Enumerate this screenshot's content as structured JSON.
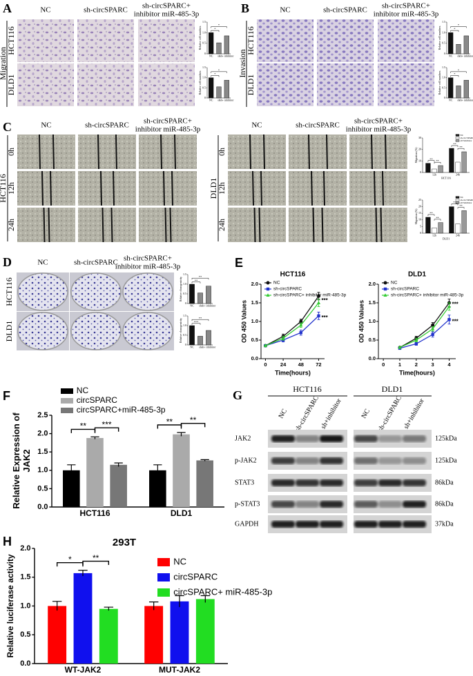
{
  "figure": {
    "panel_labels": [
      "A",
      "B",
      "C",
      "D",
      "E",
      "F",
      "G",
      "H"
    ],
    "A": {
      "columns": [
        [
          "NC"
        ],
        [
          "sh-circSPARC"
        ],
        [
          "sh-circSPARC+",
          "inhibitor miR-485-3p"
        ]
      ],
      "rows": [
        "HCT116",
        "DLD1"
      ],
      "side": "Migration"
    },
    "B": {
      "columns": [
        [
          "NC"
        ],
        [
          "sh-circSPARC"
        ],
        [
          "sh-circSPARC+",
          "inhibitor miR-485-3p"
        ]
      ],
      "rows": [
        "HCT116",
        "DLD1"
      ],
      "side": "Invasion"
    },
    "C": {
      "left": {
        "columns": [
          [
            "NC"
          ],
          [
            "sh-circSPARC"
          ],
          [
            "sh-circSPARC+",
            "inhibitor miR-485-3p"
          ]
        ],
        "rows": [
          "0h",
          "12h",
          "24h"
        ],
        "side": "HCT116"
      },
      "right": {
        "columns": [
          [
            "NC"
          ],
          [
            "sh-circSPARC"
          ],
          [
            "sh-circSPARC+",
            "inhibitor miR-485-3p"
          ]
        ],
        "rows": [
          "0h",
          "12h",
          "24h"
        ],
        "side": "DLD1"
      }
    },
    "D": {
      "columns": [
        [
          "NC"
        ],
        [
          "sh-circSPARC"
        ],
        [
          "sh-circSPARC+",
          "inhibitor miR-485-3p"
        ]
      ],
      "rows": [
        "HCT116",
        "DLD1"
      ]
    },
    "G": {
      "groups": [
        "HCT116",
        "DLD1"
      ],
      "lanes": [
        "NC",
        "sh-circSPARC",
        "sh+inhibitor"
      ],
      "rows": [
        "JAK2",
        "p-JAK2",
        "STAT3",
        "p-STAT3",
        "GAPDH"
      ],
      "sizes": [
        "125kDa",
        "125kDa",
        "86kDa",
        "86kDa",
        "37kDa"
      ]
    }
  },
  "chart_data": [
    {
      "type": "bar",
      "ylabel": "Relative cell numbers",
      "categories": [
        "NC",
        "sh",
        "sh+ inhibitor"
      ],
      "values": [
        1.0,
        0.52,
        0.85
      ],
      "colors": [
        "#111111",
        "#888888",
        "#888888"
      ],
      "ylim": [
        0,
        1.5
      ],
      "yticks": [
        0,
        0.5,
        {
          "value": 1,
          "label": "1.0"
        },
        1.5
      ],
      "annotations": [
        "*",
        "*"
      ]
    },
    {
      "type": "bar",
      "ylabel": "Relative cell numbers",
      "categories": [
        "NC",
        "sh",
        "sh+ inhibitor"
      ],
      "values": [
        1.0,
        0.55,
        0.88
      ],
      "colors": [
        "#111111",
        "#888888",
        "#888888"
      ],
      "ylim": [
        0,
        1.5
      ],
      "yticks": [
        0,
        0.5,
        {
          "value": 1,
          "label": "1.0"
        },
        1.5
      ],
      "annotations": [
        "*",
        "*"
      ]
    },
    {
      "type": "bar",
      "ylabel": "Relative cell numbers",
      "categories": [
        "NC",
        "sh",
        "sh+ inhibitor"
      ],
      "values": [
        1.0,
        0.45,
        0.85
      ],
      "colors": [
        "#111111",
        "#888888",
        "#888888"
      ],
      "ylim": [
        0,
        1.5
      ],
      "yticks": [
        0,
        0.5,
        {
          "value": 1,
          "label": "1.0"
        },
        1.5
      ],
      "annotations": [
        "*",
        "*"
      ]
    },
    {
      "type": "bar",
      "ylabel": "Relative cell numbers",
      "categories": [
        "NC",
        "sh",
        "sh+ inhibitor"
      ],
      "values": [
        1.0,
        0.6,
        0.88
      ],
      "colors": [
        "#111111",
        "#888888",
        "#888888"
      ],
      "ylim": [
        0,
        1.5
      ],
      "yticks": [
        0,
        0.5,
        {
          "value": 1,
          "label": "1.0"
        },
        1.5
      ],
      "annotations": [
        "*",
        "*"
      ]
    },
    {
      "type": "bar",
      "ylabel": "Migration (%)",
      "xlabel": "HCT116",
      "categories": [
        "12h",
        "24h"
      ],
      "series": [
        {
          "name": "NC",
          "color": "#111111",
          "values": [
            8,
            21
          ]
        },
        {
          "name": "sh-circSPARC",
          "color": "#ffffff",
          "values": [
            3,
            9
          ]
        },
        {
          "name": "sh+inhibitor",
          "color": "#999999",
          "values": [
            6,
            18
          ]
        }
      ],
      "ylim": [
        0,
        30
      ],
      "yticks": [
        0,
        10,
        20,
        30
      ],
      "annotations": [
        [
          "**",
          "**"
        ],
        [
          "**",
          "**"
        ]
      ]
    },
    {
      "type": "bar",
      "ylabel": "Migration (%)",
      "xlabel": "DLD1",
      "categories": [
        "12h",
        "24h"
      ],
      "series": [
        {
          "name": "NC",
          "color": "#111111",
          "values": [
            12,
            20
          ]
        },
        {
          "name": "sh-circSPARC",
          "color": "#ffffff",
          "values": [
            4,
            7
          ]
        },
        {
          "name": "sh+inhibitor",
          "color": "#999999",
          "values": [
            8,
            17
          ]
        }
      ],
      "ylim": [
        0,
        25
      ],
      "yticks": [
        0,
        5,
        10,
        15,
        20,
        25
      ],
      "annotations": [
        [
          "**",
          "**"
        ],
        [
          "**",
          "**"
        ]
      ]
    },
    {
      "type": "bar",
      "ylabel": "Relative clonogenicity",
      "categories": [
        "NC",
        "sh",
        "sh+ inhibitor"
      ],
      "values": [
        1.0,
        0.55,
        0.9
      ],
      "colors": [
        "#111111",
        "#888888",
        "#888888"
      ],
      "ylim": [
        0,
        1.5
      ],
      "yticks": [
        0,
        0.5,
        {
          "value": 1,
          "label": "1.0"
        },
        1.5
      ],
      "annotations": [
        "**",
        "**"
      ]
    },
    {
      "type": "bar",
      "ylabel": "Relative clonogenicity",
      "categories": [
        "NC",
        "sh",
        "sh+ inhibitor"
      ],
      "values": [
        1.0,
        0.45,
        0.75
      ],
      "colors": [
        "#111111",
        "#888888",
        "#888888"
      ],
      "ylim": [
        0,
        1.5
      ],
      "yticks": [
        0,
        0.5,
        {
          "value": 1,
          "label": "1.0"
        },
        1.5
      ],
      "annotations": [
        "***",
        "**"
      ]
    },
    {
      "type": "line",
      "title": "HCT116",
      "xlabel": "Time(hours)",
      "ylabel": "OD 450 Values",
      "x": [
        0,
        24,
        48,
        72
      ],
      "series": [
        {
          "name": "NC",
          "color": "#111111",
          "marker": "circle",
          "values": [
            0.35,
            0.6,
            1.0,
            1.68
          ],
          "errors": [
            0.02,
            0.06,
            0.06,
            0.1
          ]
        },
        {
          "name": "sh-circSPARC",
          "color": "#2233cc",
          "marker": "square",
          "values": [
            0.35,
            0.5,
            0.7,
            1.15
          ],
          "errors": [
            0.02,
            0.05,
            0.07,
            0.1
          ],
          "annotation": "***"
        },
        {
          "name": "sh-circSPARC+ inhibitor miR-485-3p",
          "color": "#33cc33",
          "marker": "triangle",
          "values": [
            0.35,
            0.55,
            0.9,
            1.5
          ],
          "errors": [
            0.02,
            0.05,
            0.06,
            0.1
          ],
          "annotation": "***"
        }
      ],
      "xlim": [
        -6,
        80
      ],
      "xticks": [
        0,
        24,
        48,
        72
      ],
      "ylim": [
        0,
        2
      ],
      "yticks": [
        {
          "value": 0,
          "label": "0.0"
        },
        0.5,
        {
          "value": 1,
          "label": "1.0"
        },
        1.5,
        {
          "value": 2,
          "label": "2.0"
        }
      ]
    },
    {
      "type": "line",
      "title": "DLD1",
      "xlabel": "Time(hours)",
      "ylabel": "OD 450 Values",
      "x": [
        1,
        2,
        3,
        4
      ],
      "series": [
        {
          "name": "NC",
          "color": "#111111",
          "marker": "circle",
          "values": [
            0.3,
            0.55,
            0.9,
            1.5
          ],
          "errors": [
            0.02,
            0.05,
            0.07,
            0.1
          ]
        },
        {
          "name": "sh-circSPARC",
          "color": "#2233cc",
          "marker": "square",
          "values": [
            0.28,
            0.4,
            0.65,
            1.05
          ],
          "errors": [
            0.02,
            0.04,
            0.07,
            0.12
          ],
          "annotation": "***"
        },
        {
          "name": "sh-circSPARC+ inhibitor miR-485-3p",
          "color": "#33cc33",
          "marker": "triangle",
          "values": [
            0.3,
            0.5,
            0.8,
            1.4
          ],
          "errors": [
            0.02,
            0.05,
            0.06,
            0.1
          ],
          "annotation": "***"
        }
      ],
      "xlim": [
        -0.3,
        4.4
      ],
      "xticks": [
        0,
        1,
        2,
        3,
        4
      ],
      "ylim": [
        0,
        2
      ],
      "yticks": [
        {
          "value": 0,
          "label": "0.0"
        },
        0.5,
        {
          "value": 1,
          "label": "1.0"
        },
        1.5,
        {
          "value": 2,
          "label": "2.0"
        }
      ]
    },
    {
      "type": "bar",
      "ylabel": "Relative Expression of JAK2",
      "categories": [
        "HCT116",
        "DLD1"
      ],
      "series": [
        {
          "name": "NC",
          "color": "#000000",
          "values": [
            1.0,
            1.0
          ],
          "errors": [
            0.15,
            0.15
          ]
        },
        {
          "name": "circSPARC",
          "color": "#aaaaaa",
          "values": [
            1.88,
            1.98
          ],
          "errors": [
            0.03,
            0.05
          ]
        },
        {
          "name": "circSPARC+miR-485-3p",
          "color": "#777777",
          "values": [
            1.15,
            1.27
          ],
          "errors": [
            0.05,
            0.02
          ]
        }
      ],
      "ylim": [
        0,
        2.5
      ],
      "yticks": [
        {
          "value": 0,
          "label": "0.0"
        },
        0.5,
        {
          "value": 1,
          "label": "1.0"
        },
        1.5,
        {
          "value": 2,
          "label": "2.0"
        },
        2.5
      ],
      "annotations": [
        [
          "**",
          "***"
        ],
        [
          "**",
          "**"
        ]
      ]
    },
    {
      "type": "bar",
      "title": "293T",
      "ylabel": "Relative luciferase activity",
      "categories": [
        "WT-JAK2",
        "MUT-JAK2"
      ],
      "series": [
        {
          "name": "NC",
          "color": "#ff0000",
          "values": [
            1.0,
            1.0
          ],
          "errors": [
            0.08,
            0.07
          ]
        },
        {
          "name": "circSPARC",
          "color": "#1010ee",
          "values": [
            1.57,
            1.08
          ],
          "errors": [
            0.05,
            0.1
          ]
        },
        {
          "name": "circSPARC+ miR-485-3p",
          "color": "#22dd22",
          "values": [
            0.95,
            1.12
          ],
          "errors": [
            0.03,
            0.06
          ]
        }
      ],
      "ylim": [
        0,
        2
      ],
      "yticks": [
        {
          "value": 0,
          "label": "0.0"
        },
        0.5,
        {
          "value": 1,
          "label": "1.0"
        },
        1.5,
        {
          "value": 2,
          "label": "2.0"
        }
      ],
      "annotations": [
        [
          "*",
          "**"
        ],
        []
      ]
    }
  ]
}
